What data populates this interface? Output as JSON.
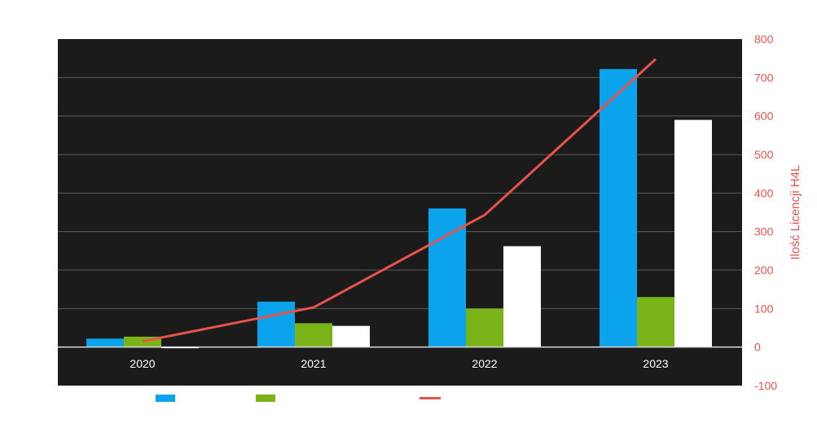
{
  "chart_data": {
    "type": "bar",
    "categories": [
      "2020",
      "2021",
      "2022",
      "2023"
    ],
    "series": [
      {
        "kind": "bar",
        "color": "#0aa3ec",
        "values": [
          22,
          118,
          360,
          722
        ]
      },
      {
        "kind": "bar",
        "color": "#7ab317",
        "values": [
          27,
          62,
          100,
          130
        ]
      },
      {
        "kind": "bar",
        "color": "#ffffff",
        "values": [
          -3,
          55,
          262,
          590
        ]
      },
      {
        "kind": "line",
        "color": "#e8524d",
        "values": [
          15,
          103,
          343,
          748
        ]
      }
    ],
    "y_axis": {
      "label": "Ilość Licencji H4L",
      "ticks": [
        "-100",
        "0",
        "100",
        "200",
        "300",
        "400",
        "500",
        "600",
        "700",
        "800"
      ],
      "min": -100,
      "max": 800,
      "position": "right",
      "color": "#e8524d"
    },
    "plot_background": "#1c1b1b",
    "gridlines": true,
    "legend": "bottom"
  }
}
